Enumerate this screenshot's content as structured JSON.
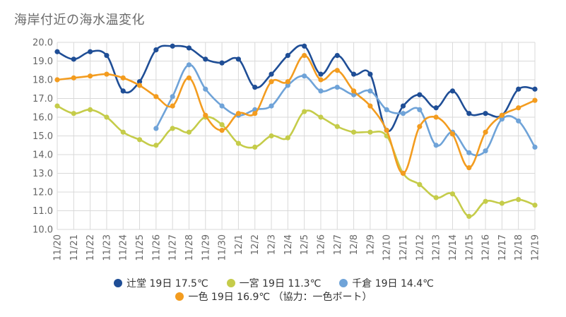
{
  "chart_data": {
    "type": "line",
    "title": "海岸付近の海水温変化",
    "xlabel": "",
    "ylabel": "",
    "ylim": [
      10.0,
      20.0
    ],
    "yticks": [
      "10.0",
      "11.0",
      "12.0",
      "13.0",
      "14.0",
      "15.0",
      "16.0",
      "17.0",
      "18.0",
      "19.0",
      "20.0"
    ],
    "grid": true,
    "legend_position": "bottom",
    "categories": [
      "11/20",
      "11/21",
      "11/22",
      "11/23",
      "11/24",
      "11/25",
      "11/26",
      "11/27",
      "11/28",
      "11/29",
      "11/30",
      "12/1",
      "12/2",
      "12/3",
      "12/4",
      "12/5",
      "12/6",
      "12/7",
      "12/8",
      "12/9",
      "12/10",
      "12/11",
      "12/12",
      "12/13",
      "12/14",
      "12/15",
      "12/16",
      "12/17",
      "12/18",
      "12/19"
    ],
    "series": [
      {
        "name": "辻堂",
        "legend_label": "辻堂 19日 17.5℃",
        "color": "#1f4e96",
        "values": [
          19.5,
          19.1,
          19.5,
          19.3,
          17.4,
          17.9,
          19.6,
          19.8,
          19.7,
          19.1,
          18.9,
          19.1,
          17.6,
          18.3,
          19.3,
          19.8,
          18.3,
          19.3,
          18.3,
          18.3,
          15.3,
          16.6,
          17.2,
          16.5,
          17.4,
          16.2,
          16.2,
          16.1,
          17.5,
          17.5
        ]
      },
      {
        "name": "一宮",
        "legend_label": "一宮 19日 11.3℃",
        "color": "#c5cc4a",
        "values": [
          16.6,
          16.2,
          16.4,
          16.0,
          15.2,
          14.8,
          14.5,
          15.4,
          15.2,
          16.0,
          15.6,
          14.6,
          14.4,
          15.0,
          14.9,
          16.3,
          16.0,
          15.5,
          15.2,
          15.2,
          15.0,
          13.0,
          12.4,
          11.7,
          11.9,
          10.7,
          11.5,
          11.4,
          11.6,
          11.3
        ]
      },
      {
        "name": "千倉",
        "legend_label": "千倉 19日 14.4℃",
        "color": "#6fa3d8",
        "values": [
          null,
          null,
          null,
          null,
          null,
          null,
          15.4,
          17.1,
          18.8,
          17.5,
          16.6,
          16.1,
          16.4,
          16.6,
          17.7,
          18.2,
          17.4,
          17.6,
          17.2,
          17.4,
          16.4,
          16.2,
          16.4,
          14.5,
          15.2,
          14.1,
          14.2,
          15.9,
          15.8,
          14.4
        ]
      },
      {
        "name": "一色",
        "legend_label": "一色 19日 16.9℃ （協力：一色ボート）",
        "color": "#f39c1f",
        "values": [
          18.0,
          18.1,
          18.2,
          18.3,
          18.1,
          17.7,
          17.1,
          16.6,
          18.1,
          16.1,
          15.3,
          16.2,
          16.2,
          17.9,
          17.9,
          19.3,
          18.0,
          18.5,
          17.4,
          16.6,
          15.3,
          13.0,
          15.5,
          16.0,
          15.1,
          13.3,
          15.2,
          16.1,
          16.5,
          16.9
        ]
      }
    ]
  }
}
